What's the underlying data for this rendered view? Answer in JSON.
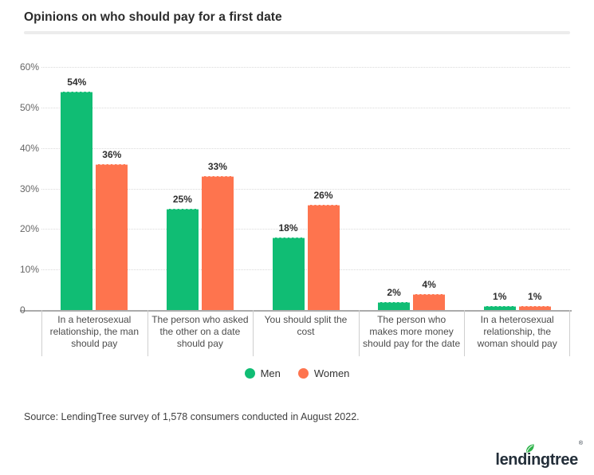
{
  "title": "Opinions on who should pay for a first date",
  "source": "Source: LendingTree survey of 1,578 consumers conducted in August 2022.",
  "logo": {
    "brand": "lendingtree",
    "pre": "lend",
    "i": "i",
    "post": "ngtree",
    "reg": "®",
    "leaf_color": "#2fb34b",
    "text_color": "#232e39"
  },
  "colors": {
    "men": "#10bd74",
    "women": "#fe744e",
    "grid": "#dadada",
    "axis": "#ababab",
    "divider": "#ececec"
  },
  "chart_data": {
    "type": "bar",
    "title": "Opinions on who should pay for a first date",
    "categories": [
      "In a heterosexual relationship, the man should pay",
      "The person who asked the other on a date should pay",
      "You should split the cost",
      "The person who makes more money should pay for the date",
      "In a heterosexual relationship, the woman should pay"
    ],
    "series": [
      {
        "name": "Men",
        "color": "#10bd74",
        "values": [
          54,
          25,
          18,
          2,
          1
        ]
      },
      {
        "name": "Women",
        "color": "#fe744e",
        "values": [
          36,
          33,
          26,
          4,
          1
        ]
      }
    ],
    "value_suffix": "%",
    "xlabel": "",
    "ylabel": "",
    "ylim": [
      0,
      60
    ],
    "ytick_values": [
      0,
      10,
      20,
      30,
      40,
      50,
      60
    ],
    "grid": "horizontal-dotted",
    "legend_position": "bottom-center",
    "data_labels": "above-bars"
  }
}
